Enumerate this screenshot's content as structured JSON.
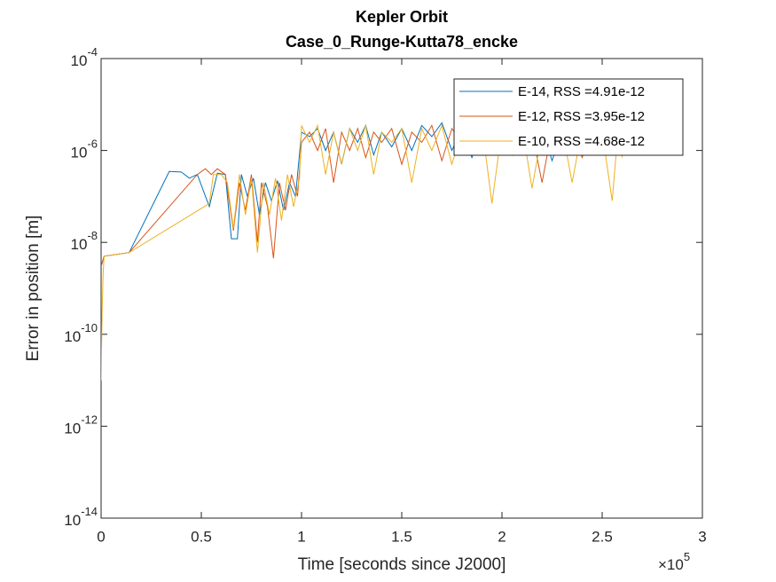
{
  "chart_data": {
    "type": "line",
    "title": "Kepler Orbit",
    "subtitle": "Case_0_Runge-Kutta78_encke",
    "xlabel": "Time [seconds since J2000]",
    "ylabel": "Error in position [m]",
    "yscale": "log",
    "grid": false,
    "legend": "northeast",
    "xlim": [
      0,
      300000
    ],
    "ylim": [
      1e-14,
      0.0001
    ],
    "xticks": [
      0,
      {
        "value": 50000,
        "label": "0.5"
      },
      {
        "value": 100000,
        "label": "1"
      },
      {
        "value": 150000,
        "label": "1.5"
      },
      {
        "value": 200000,
        "label": "2"
      },
      {
        "value": 250000,
        "label": "2.5"
      },
      {
        "value": 300000,
        "label": "3"
      }
    ],
    "x_exponent": {
      "base": "×10",
      "power": "5"
    },
    "yticks": [
      {
        "value": 1e-14,
        "label": "10",
        "exponent": "-14"
      },
      {
        "value": 1e-12,
        "label": "10",
        "exponent": "-12"
      },
      {
        "value": 1e-10,
        "label": "10",
        "exponent": "-10"
      },
      {
        "value": 1e-08,
        "label": "10",
        "exponent": "-8"
      },
      {
        "value": 1e-06,
        "label": "10",
        "exponent": "-6"
      },
      {
        "value": 0.0001,
        "label": "10",
        "exponent": "-4"
      }
    ],
    "series": [
      {
        "name": "E-14, RSS =4.91e-12",
        "color": "#0072bd",
        "x": [
          0,
          1500,
          14000,
          34000,
          40000,
          44000,
          48000,
          54000,
          58000,
          62000,
          65000,
          68000,
          70000,
          73000,
          76000,
          79000,
          82000,
          85000,
          88000,
          91000,
          94000,
          97000,
          100000,
          104000,
          108000,
          112000,
          116000,
          120000,
          124000,
          128000,
          132000,
          136000,
          140000,
          145000,
          150000,
          155000,
          160000,
          165000,
          170000,
          175000,
          180000,
          185000,
          190000,
          195000,
          200000,
          205000,
          210000,
          215000,
          220000,
          225000,
          230000,
          235000,
          240000,
          245000,
          250000,
          255000,
          260000
        ],
        "values": [
          3e-09,
          5e-09,
          6e-09,
          3.5e-07,
          3.4e-07,
          2.5e-07,
          3e-07,
          6e-08,
          3.2e-07,
          3e-07,
          1.2e-08,
          1.2e-08,
          3e-07,
          1e-07,
          2.5e-07,
          4e-08,
          2e-07,
          8e-08,
          2.2e-07,
          5e-08,
          2e-07,
          1e-07,
          2.5e-06,
          2e-06,
          3e-06,
          1e-06,
          2.5e-06,
          5e-07,
          3e-06,
          1.5e-06,
          3.5e-06,
          8e-07,
          2.5e-06,
          1.2e-06,
          3e-06,
          1e-06,
          3.5e-06,
          2e-06,
          4e-06,
          1e-06,
          3e-06,
          7e-07,
          2.5e-06,
          1.5e-06,
          3.5e-06,
          8e-07,
          3e-06,
          1.5e-06,
          3e-06,
          6e-07,
          2.5e-06,
          1.2e-06,
          3e-06,
          8e-07,
          2.5e-06,
          1.5e-06,
          2e-06
        ]
      },
      {
        "name": "E-12, RSS =3.95e-12",
        "color": "#d95319",
        "x": [
          0,
          1500,
          14000,
          48000,
          52000,
          55000,
          58000,
          62000,
          66000,
          69000,
          72000,
          75000,
          78000,
          80000,
          83000,
          86000,
          89000,
          92000,
          95000,
          98000,
          100000,
          104000,
          108000,
          112000,
          116000,
          120000,
          124000,
          128000,
          132000,
          136000,
          140000,
          145000,
          150000,
          155000,
          160000,
          165000,
          170000,
          175000,
          180000,
          185000,
          190000,
          195000,
          200000,
          205000,
          210000,
          215000,
          220000,
          225000,
          230000,
          235000,
          240000,
          245000,
          250000,
          255000,
          260000
        ],
        "values": [
          3e-09,
          5e-09,
          6e-09,
          3e-07,
          4e-07,
          3e-07,
          4e-07,
          3e-07,
          1.8e-08,
          2e-07,
          5e-08,
          3e-07,
          1e-08,
          2e-07,
          6e-08,
          4.5e-09,
          2e-07,
          5e-08,
          3e-07,
          1e-07,
          1.5e-06,
          2.5e-06,
          1e-06,
          3e-06,
          2e-07,
          2.5e-06,
          1e-06,
          3e-06,
          7e-07,
          2.5e-06,
          1.5e-06,
          3e-06,
          5e-07,
          2.5e-06,
          1.5e-06,
          3.5e-06,
          6e-07,
          3e-06,
          1.5e-06,
          3.5e-06,
          8e-07,
          3e-06,
          1.2e-06,
          3.5e-06,
          9e-07,
          2.5e-06,
          2e-07,
          3e-06,
          1.2e-06,
          3e-06,
          7e-07,
          2.5e-06,
          1.5e-06,
          3e-06,
          2e-06
        ]
      },
      {
        "name": "E-10, RSS =4.68e-12",
        "color": "#edb120",
        "x": [
          0,
          500,
          1000,
          1500,
          14000,
          54000,
          56000,
          60000,
          63000,
          66000,
          69000,
          72000,
          75000,
          78000,
          81000,
          84000,
          87000,
          90000,
          93000,
          96000,
          99000,
          100000,
          104000,
          108000,
          112000,
          116000,
          120000,
          124000,
          128000,
          132000,
          136000,
          140000,
          145000,
          150000,
          155000,
          160000,
          165000,
          170000,
          175000,
          180000,
          185000,
          190000,
          195000,
          200000,
          205000,
          210000,
          215000,
          220000,
          225000,
          230000,
          235000,
          240000,
          245000,
          250000,
          255000,
          258000,
          260000
        ],
        "values": [
          1e-11,
          3e-10,
          2e-09,
          5e-09,
          6e-09,
          7e-08,
          3e-07,
          3e-07,
          2e-07,
          2e-08,
          3e-07,
          4e-08,
          2.5e-07,
          6e-09,
          2e-07,
          4e-08,
          2.5e-07,
          3e-08,
          3e-07,
          6e-08,
          2.5e-07,
          3.5e-06,
          1.5e-06,
          3.5e-06,
          3e-07,
          2.5e-06,
          5e-07,
          3e-06,
          1e-06,
          3.5e-06,
          3e-07,
          2.5e-06,
          1.5e-06,
          3e-06,
          2e-07,
          3e-06,
          1e-06,
          3.5e-06,
          5e-07,
          2.5e-06,
          1.5e-06,
          3.5e-06,
          7e-08,
          3e-06,
          1e-06,
          3.5e-06,
          1.5e-07,
          2.5e-06,
          1e-06,
          3e-06,
          2e-07,
          3e-06,
          1.5e-06,
          2.5e-06,
          8e-08,
          3e-06,
          7e-07
        ]
      }
    ]
  }
}
